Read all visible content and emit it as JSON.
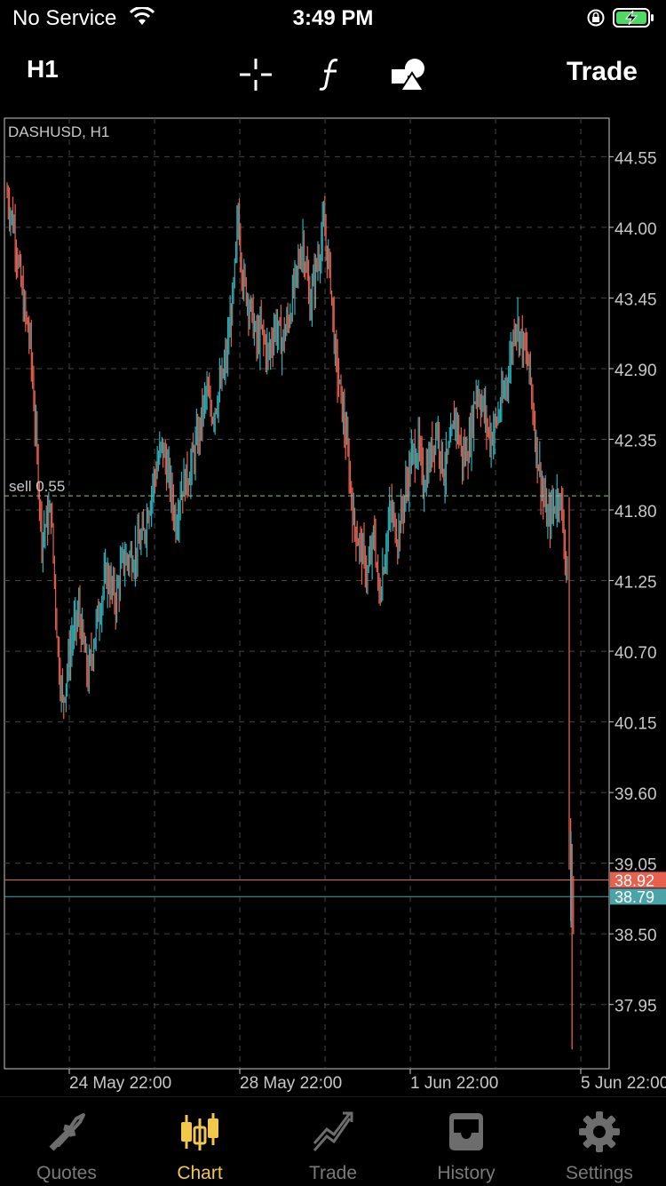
{
  "status_bar": {
    "carrier": "No Service",
    "time": "3:49 PM"
  },
  "toolbar": {
    "timeframe": "H1",
    "trade_label": "Trade",
    "tools": [
      "crosshair-icon",
      "function-icon",
      "objects-icon"
    ]
  },
  "chart": {
    "symbol_label": "DASHUSD, H1",
    "sell_label": "sell 0.55",
    "colors": {
      "up": "#2bb0b7",
      "down": "#e8604e",
      "grid": "#444444",
      "bid_line": "#e8604e",
      "ask_line": "#4aa3a8"
    }
  },
  "chart_data": {
    "type": "candlestick",
    "symbol": "DASHUSD",
    "timeframe": "H1",
    "y_ticks": [
      "44.55",
      "44.00",
      "43.45",
      "42.90",
      "42.35",
      "41.80",
      "41.25",
      "40.70",
      "40.15",
      "39.60",
      "39.05",
      "38.50",
      "37.95"
    ],
    "x_ticks": [
      "24 May 22:00",
      "28 May 22:00",
      "1 Jun 22:00",
      "5 Jun 22:00"
    ],
    "ylim": [
      37.45,
      44.85
    ],
    "bid": "38.92",
    "ask": "38.79",
    "sell_level": 41.91,
    "grid": true,
    "close_path": [
      [
        0,
        44.25
      ],
      [
        6,
        44.0
      ],
      [
        14,
        43.4
      ],
      [
        20,
        43.1
      ],
      [
        26,
        42.2
      ],
      [
        30,
        41.6
      ],
      [
        38,
        41.8
      ],
      [
        44,
        40.7
      ],
      [
        48,
        40.3
      ],
      [
        56,
        40.8
      ],
      [
        62,
        41.0
      ],
      [
        70,
        40.5
      ],
      [
        78,
        40.95
      ],
      [
        86,
        41.3
      ],
      [
        94,
        41.1
      ],
      [
        100,
        41.4
      ],
      [
        110,
        41.45
      ],
      [
        118,
        41.6
      ],
      [
        126,
        42.0
      ],
      [
        134,
        42.3
      ],
      [
        140,
        42.05
      ],
      [
        146,
        41.7
      ],
      [
        150,
        41.95
      ],
      [
        158,
        42.1
      ],
      [
        166,
        42.4
      ],
      [
        172,
        42.7
      ],
      [
        178,
        42.55
      ],
      [
        186,
        42.8
      ],
      [
        190,
        43.0
      ],
      [
        196,
        43.5
      ],
      [
        200,
        44.1
      ],
      [
        204,
        43.6
      ],
      [
        210,
        43.4
      ],
      [
        216,
        43.1
      ],
      [
        220,
        43.2
      ],
      [
        226,
        43.0
      ],
      [
        232,
        43.25
      ],
      [
        238,
        43.1
      ],
      [
        244,
        43.3
      ],
      [
        250,
        43.6
      ],
      [
        256,
        43.9
      ],
      [
        262,
        43.4
      ],
      [
        268,
        43.7
      ],
      [
        274,
        44.0
      ],
      [
        280,
        43.6
      ],
      [
        284,
        43.0
      ],
      [
        290,
        42.6
      ],
      [
        294,
        42.3
      ],
      [
        300,
        41.7
      ],
      [
        306,
        41.5
      ],
      [
        312,
        41.3
      ],
      [
        318,
        41.6
      ],
      [
        322,
        41.1
      ],
      [
        326,
        41.4
      ],
      [
        332,
        41.8
      ],
      [
        338,
        41.6
      ],
      [
        344,
        41.9
      ],
      [
        350,
        42.2
      ],
      [
        356,
        42.3
      ],
      [
        360,
        42.0
      ],
      [
        366,
        42.2
      ],
      [
        372,
        42.45
      ],
      [
        378,
        42.1
      ],
      [
        384,
        42.3
      ],
      [
        388,
        42.55
      ],
      [
        394,
        42.2
      ],
      [
        400,
        42.3
      ],
      [
        406,
        42.75
      ],
      [
        412,
        42.6
      ],
      [
        418,
        42.35
      ],
      [
        424,
        42.5
      ],
      [
        430,
        42.7
      ],
      [
        436,
        43.0
      ],
      [
        440,
        43.3
      ],
      [
        446,
        43.1
      ],
      [
        452,
        42.9
      ],
      [
        458,
        42.3
      ],
      [
        464,
        41.9
      ],
      [
        468,
        41.7
      ],
      [
        474,
        41.85
      ],
      [
        478,
        41.95
      ],
      [
        482,
        41.6
      ],
      [
        485,
        41.3
      ]
    ]
  },
  "tabs": [
    {
      "label": "Quotes",
      "icon": "quotes-arrows-icon"
    },
    {
      "label": "Chart",
      "icon": "candlesticks-icon"
    },
    {
      "label": "Trade",
      "icon": "trade-chart-icon"
    },
    {
      "label": "History",
      "icon": "inbox-tray-icon"
    },
    {
      "label": "Settings",
      "icon": "gear-icon"
    }
  ]
}
